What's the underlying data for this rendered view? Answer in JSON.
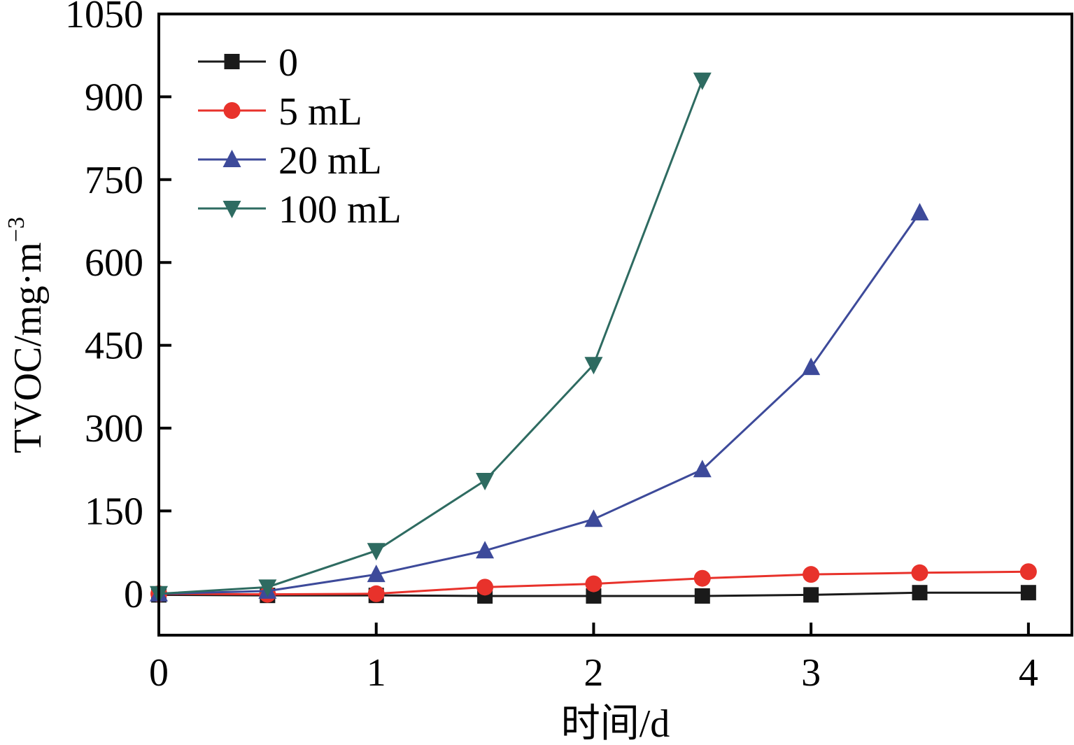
{
  "chart_data": {
    "type": "line",
    "xlabel": "时间/d",
    "ylabel_main": "TVOC/mg·m",
    "ylabel_sup": "−3",
    "xlim": [
      0,
      4.2
    ],
    "ylim": [
      -75,
      1050
    ],
    "xticks": [
      0,
      1,
      2,
      3,
      4
    ],
    "yticks": [
      0,
      150,
      300,
      450,
      600,
      750,
      900,
      1050
    ],
    "grid": false,
    "legend_position": "top-left",
    "series": [
      {
        "name": "0",
        "color": "#1a1a1a",
        "marker": "square",
        "x": [
          0,
          0.5,
          1,
          1.5,
          2,
          2.5,
          3,
          3.5,
          4
        ],
        "y": [
          -2,
          -3,
          -3,
          -4,
          -4,
          -4,
          -2,
          2,
          2
        ]
      },
      {
        "name": "5 mL",
        "color": "#e8322b",
        "marker": "circle",
        "x": [
          0,
          0.5,
          1,
          1.5,
          2,
          2.5,
          3,
          3.5,
          4
        ],
        "y": [
          0,
          -1,
          0,
          12,
          18,
          28,
          35,
          38,
          40
        ]
      },
      {
        "name": "20 mL",
        "color": "#3d4a9a",
        "marker": "triangle-up",
        "x": [
          0,
          0.5,
          1,
          1.5,
          2,
          2.5,
          3,
          3.5
        ],
        "y": [
          0,
          5,
          35,
          78,
          135,
          225,
          410,
          690
        ]
      },
      {
        "name": "100 mL",
        "color": "#2e6b61",
        "marker": "triangle-down",
        "x": [
          0,
          0.5,
          1,
          1.5,
          2,
          2.5
        ],
        "y": [
          0,
          12,
          78,
          205,
          415,
          930
        ]
      }
    ]
  }
}
